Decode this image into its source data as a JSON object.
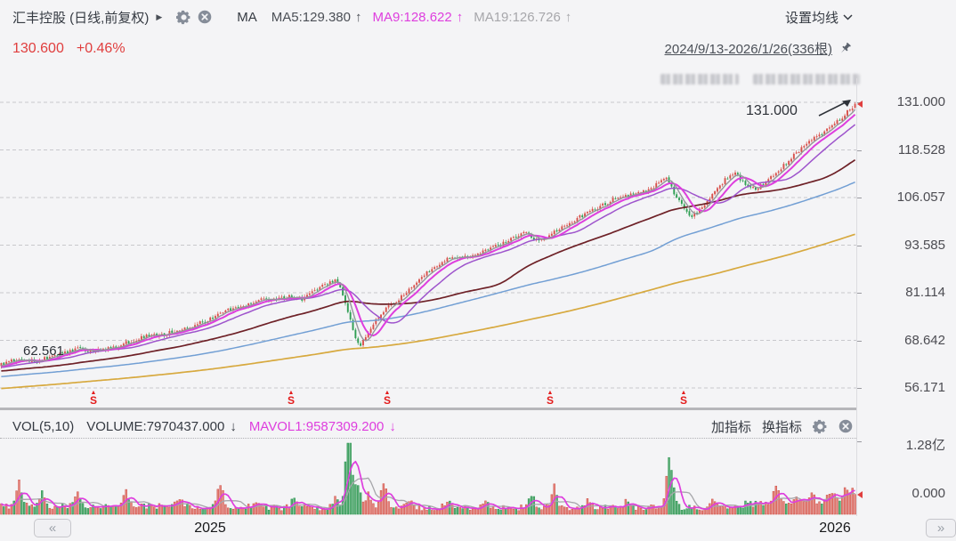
{
  "header": {
    "title": "汇丰控股 (日线,前复权)",
    "expand_caret": "▶",
    "indicator_label": "MA",
    "ma_items": [
      {
        "label": "MA5:129.380",
        "arrow": "↑",
        "color": "#4b4f56"
      },
      {
        "label": "MA9:128.622",
        "arrow": "↑",
        "color": "#de3ede"
      },
      {
        "label": "MA19:126.726",
        "arrow": "↑",
        "color": "#a7a7ab"
      }
    ],
    "ma_settings_label": "设置均线",
    "price": "130.600",
    "change": "+0.46%",
    "range_label": "2024/9/13-2026/1/26(336根)"
  },
  "price_axis": {
    "labels": [
      "131.000",
      "118.528",
      "106.057",
      "93.585",
      "81.114",
      "68.642",
      "56.171"
    ]
  },
  "annotations": {
    "low_label": "62.561",
    "high_label": "131.000"
  },
  "volume_header": {
    "vol_label": "VOL(5,10)",
    "volume_label": "VOLUME:7970437.000",
    "volume_arrow": "↓",
    "mavol_label": "MAVOL1:9587309.200",
    "mavol_arrow": "↓",
    "add_indicator": "加指标",
    "switch_indicator": "换指标"
  },
  "volume_axis": {
    "max_label": "1.28亿",
    "min_label": "0.000"
  },
  "time_axis": {
    "years": [
      {
        "label": "2025",
        "fx": 0.2454
      },
      {
        "label": "2026",
        "fx": 0.9751
      }
    ]
  },
  "nav": {
    "left": "«",
    "right": "»"
  },
  "dividend_marker": {
    "arrow": "▲",
    "glyph": "S"
  },
  "chart_data": {
    "type": "candlestick",
    "title": "汇丰控股 日线 前复权",
    "date_range": [
      "2024/9/13",
      "2026/1/26"
    ],
    "bars": 336,
    "price_max": 131.0,
    "price_min": 56.171,
    "price_axis_ticks": [
      131.0,
      118.528,
      106.057,
      93.585,
      81.114,
      68.642,
      56.171
    ],
    "last": {
      "close": 130.6,
      "change_pct": "+0.46%"
    },
    "low_annotation": 62.561,
    "high_annotation": 131.0,
    "moving_averages": [
      {
        "period": 9,
        "value": 128.622,
        "color": "#de3ede",
        "width": 2.0
      },
      {
        "period": 5,
        "value": 129.38,
        "color": "#95959b",
        "width": 1.4
      },
      {
        "period": 19,
        "value": 126.726,
        "color": "#9e54cc",
        "width": 1.5
      },
      {
        "period": 60,
        "color": "#6e2127",
        "width": 1.7
      },
      {
        "period": 120,
        "color": "#729fd4",
        "width": 1.5
      },
      {
        "period": 250,
        "color": "#d7a93f",
        "width": 1.7
      }
    ],
    "trend_anchors": [
      [
        0,
        62.2
      ],
      [
        6,
        63.6
      ],
      [
        14,
        63.2
      ],
      [
        22,
        64.8
      ],
      [
        30,
        66.3
      ],
      [
        38,
        66.0
      ],
      [
        46,
        67.2
      ],
      [
        55,
        69.5
      ],
      [
        64,
        70.2
      ],
      [
        72,
        72.0
      ],
      [
        80,
        73.5
      ],
      [
        88,
        76.5
      ],
      [
        96,
        78.0
      ],
      [
        104,
        79.8
      ],
      [
        108,
        79.0
      ],
      [
        113,
        80.5
      ],
      [
        118,
        79.2
      ],
      [
        124,
        82.0
      ],
      [
        128,
        83.5
      ],
      [
        131,
        84.2
      ],
      [
        133,
        82.5
      ],
      [
        135,
        78.5
      ],
      [
        137,
        74.0
      ],
      [
        139,
        69.5
      ],
      [
        141,
        67.3
      ],
      [
        143,
        70.0
      ],
      [
        146,
        73.0
      ],
      [
        150,
        76.5
      ],
      [
        155,
        79.0
      ],
      [
        160,
        82.0
      ],
      [
        165,
        85.5
      ],
      [
        170,
        88.0
      ],
      [
        175,
        90.3
      ],
      [
        180,
        90.0
      ],
      [
        185,
        90.8
      ],
      [
        190,
        92.0
      ],
      [
        195,
        93.5
      ],
      [
        200,
        95.0
      ],
      [
        205,
        97.2
      ],
      [
        208,
        95.8
      ],
      [
        211,
        94.3
      ],
      [
        215,
        96.0
      ],
      [
        220,
        98.5
      ],
      [
        225,
        100.3
      ],
      [
        230,
        102.0
      ],
      [
        235,
        103.8
      ],
      [
        240,
        105.5
      ],
      [
        244,
        106.2
      ],
      [
        248,
        106.8
      ],
      [
        252,
        107.5
      ],
      [
        256,
        109.0
      ],
      [
        259,
        110.5
      ],
      [
        261,
        111.2
      ],
      [
        263,
        108.5
      ],
      [
        266,
        105.0
      ],
      [
        269,
        102.3
      ],
      [
        271,
        101.2
      ],
      [
        274,
        103.0
      ],
      [
        278,
        106.0
      ],
      [
        282,
        109.0
      ],
      [
        285,
        111.5
      ],
      [
        288,
        112.8
      ],
      [
        290,
        111.0
      ],
      [
        293,
        109.0
      ],
      [
        296,
        108.2
      ],
      [
        299,
        109.5
      ],
      [
        303,
        112.0
      ],
      [
        307,
        114.5
      ],
      [
        311,
        117.0
      ],
      [
        315,
        119.5
      ],
      [
        319,
        121.5
      ],
      [
        323,
        123.5
      ],
      [
        327,
        125.5
      ],
      [
        330,
        127.2
      ],
      [
        332,
        128.4
      ],
      [
        334,
        129.6
      ],
      [
        335,
        130.6
      ]
    ],
    "dividend_marker_positions": [
      0.109,
      0.34,
      0.452,
      0.642,
      0.798
    ],
    "volume": {
      "current": 7970437.0,
      "mavol1": 9587309.2,
      "max_axis": "1.28亿",
      "min_axis": "0.000",
      "spikes": [
        [
          7,
          0.33
        ],
        [
          16,
          0.2
        ],
        [
          30,
          0.22
        ],
        [
          49,
          0.2
        ],
        [
          70,
          0.12
        ],
        [
          86,
          0.33
        ],
        [
          100,
          0.1
        ],
        [
          115,
          0.12
        ],
        [
          131,
          0.12
        ],
        [
          136,
          0.95
        ],
        [
          137,
          0.3
        ],
        [
          140,
          0.32
        ],
        [
          144,
          0.2
        ],
        [
          150,
          0.34
        ],
        [
          160,
          0.12
        ],
        [
          175,
          0.1
        ],
        [
          190,
          0.08
        ],
        [
          208,
          0.18
        ],
        [
          217,
          0.32
        ],
        [
          230,
          0.1
        ],
        [
          245,
          0.08
        ],
        [
          262,
          0.66
        ],
        [
          264,
          0.18
        ],
        [
          280,
          0.12
        ],
        [
          293,
          0.1
        ],
        [
          304,
          0.24
        ],
        [
          312,
          0.1
        ],
        [
          318,
          0.12
        ],
        [
          324,
          0.1
        ],
        [
          327,
          0.15
        ],
        [
          331,
          0.2
        ],
        [
          334,
          0.18
        ]
      ],
      "mavol_colors": {
        "mavol1": "#de3ede",
        "mavol2": "#a6a6aa"
      }
    },
    "colors": {
      "up": "#d8504b",
      "down": "#2f9e53",
      "vol_up_fill": "#e4837b",
      "vol_up_stroke": "#cf5148",
      "vol_down_fill": "#58ad74",
      "vol_down_stroke": "#27934d",
      "grid": "#c8c8cc",
      "accent_red": "#e03e3e"
    }
  }
}
